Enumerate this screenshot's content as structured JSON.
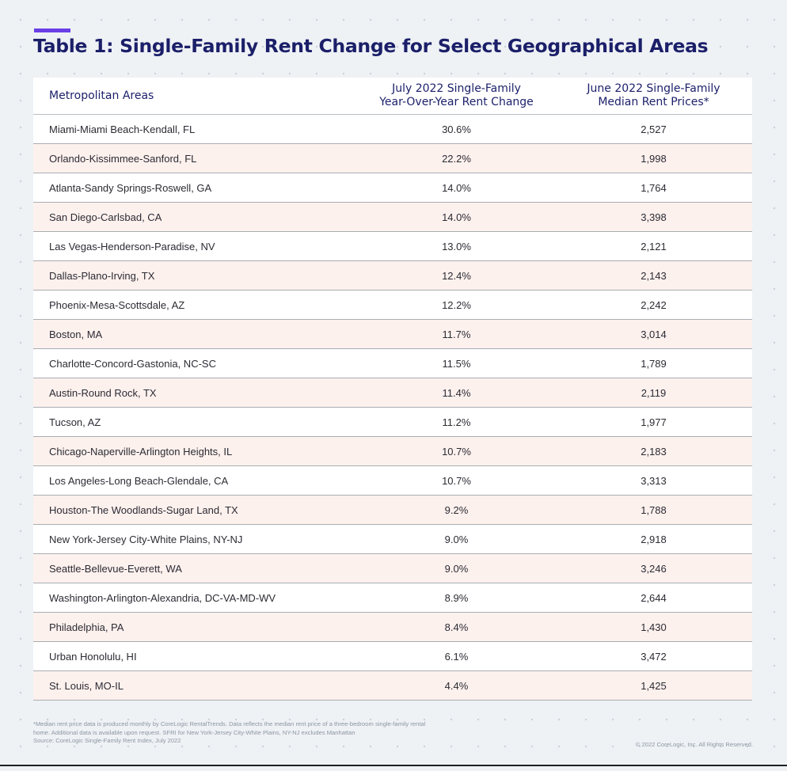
{
  "header": {
    "title": "Table 1: Single-Family Rent Change for Select Geographical Areas"
  },
  "chart_data": {
    "type": "table",
    "title": "Table 1: Single-Family Rent Change for Select Geographical Areas",
    "columns": [
      "Metropolitan Areas",
      "July 2022 Single-Family\nYear-Over-Year Rent Change",
      "June 2022 Single-Family\nMedian Rent Prices*"
    ],
    "rows": [
      [
        "Miami-Miami Beach-Kendall, FL",
        "30.6%",
        "2,527"
      ],
      [
        "Orlando-Kissimmee-Sanford, FL",
        "22.2%",
        "1,998"
      ],
      [
        "Atlanta-Sandy Springs-Roswell, GA",
        "14.0%",
        "1,764"
      ],
      [
        "San Diego-Carlsbad, CA",
        "14.0%",
        "3,398"
      ],
      [
        "Las Vegas-Henderson-Paradise, NV",
        "13.0%",
        "2,121"
      ],
      [
        "Dallas-Plano-Irving, TX",
        "12.4%",
        "2,143"
      ],
      [
        "Phoenix-Mesa-Scottsdale, AZ",
        "12.2%",
        "2,242"
      ],
      [
        "Boston, MA",
        "11.7%",
        "3,014"
      ],
      [
        "Charlotte-Concord-Gastonia, NC-SC",
        "11.5%",
        "1,789"
      ],
      [
        "Austin-Round Rock, TX",
        "11.4%",
        "2,119"
      ],
      [
        "Tucson, AZ",
        "11.2%",
        "1,977"
      ],
      [
        "Chicago-Naperville-Arlington Heights, IL",
        "10.7%",
        "2,183"
      ],
      [
        "Los Angeles-Long Beach-Glendale, CA",
        "10.7%",
        "3,313"
      ],
      [
        "Houston-The Woodlands-Sugar Land, TX",
        "9.2%",
        "1,788"
      ],
      [
        "New York-Jersey City-White Plains, NY-NJ",
        "9.0%",
        "2,918"
      ],
      [
        "Seattle-Bellevue-Everett, WA",
        "9.0%",
        "3,246"
      ],
      [
        "Washington-Arlington-Alexandria, DC-VA-MD-WV",
        "8.9%",
        "2,644"
      ],
      [
        "Philadelphia, PA",
        "8.4%",
        "1,430"
      ],
      [
        "Urban Honolulu, HI",
        "6.1%",
        "3,472"
      ],
      [
        "St. Louis, MO-IL",
        "4.4%",
        "1,425"
      ]
    ]
  },
  "footer": {
    "note_lines": [
      "*Median rent price data is produced monthly by CoreLogic RentalTrends. Data reflects the median rent  price of a three-bedroom single-family rental",
      "home. Additional data is available upon request. SFRI for New York-Jersey City-White Plains, NY-NJ excludes Manhattan",
      "Source: CoreLogic Single-Family Rent Index, July 2022"
    ],
    "copyright": "© 2022 CoreLogic, Inc. All Rights Reserved."
  },
  "colors": {
    "title": "#1b1f69",
    "accent": "#6a3fe6",
    "row_stripe": "#fdf1ee"
  }
}
